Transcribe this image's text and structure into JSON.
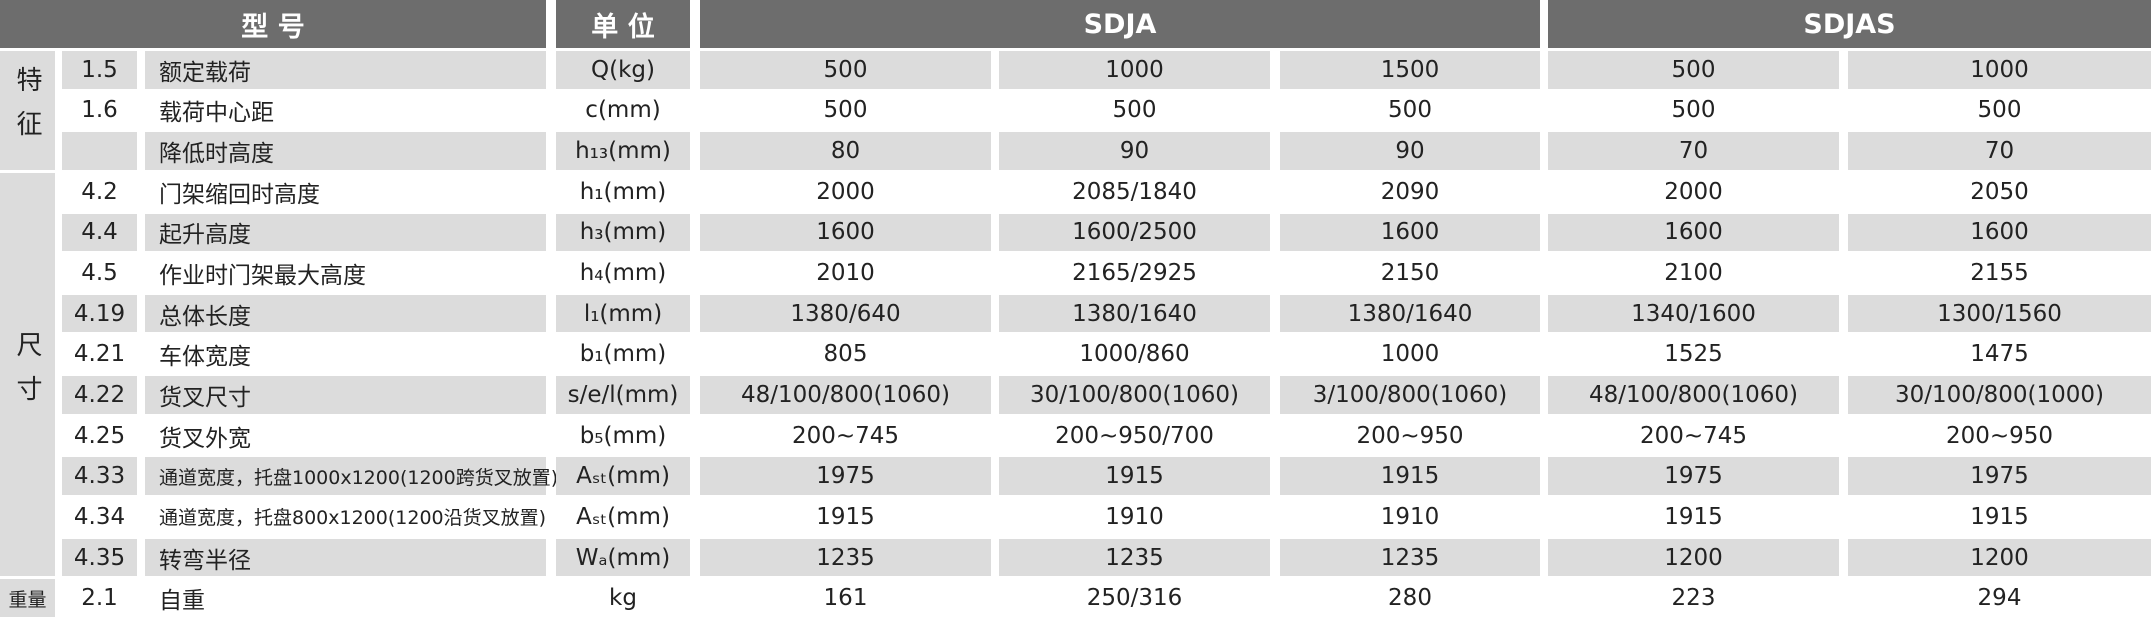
{
  "table": {
    "header": [
      "型 号",
      "单 位",
      "SDJA",
      "SDJAS"
    ],
    "groups": [
      {
        "label": "特征",
        "rows": [
          0,
          2
        ]
      },
      {
        "label": "尺寸",
        "rows": [
          3,
          12
        ]
      },
      {
        "label": "重量",
        "rows": [
          13,
          13
        ]
      }
    ],
    "rows": [
      {
        "code": "1.5",
        "name": "额定载荷",
        "unit": "Q(kg)",
        "values": [
          "500",
          "1000",
          "1500",
          "500",
          "1000"
        ]
      },
      {
        "code": "1.6",
        "name": "载荷中心距",
        "unit": "c(mm)",
        "values": [
          "500",
          "500",
          "500",
          "500",
          "500"
        ]
      },
      {
        "code": null,
        "name": "降低时高度",
        "unit": "h₁₃(mm)",
        "values": [
          "80",
          "90",
          "90",
          "70",
          "70"
        ]
      },
      {
        "code": "4.2",
        "name": "门架缩回时高度",
        "unit": "h₁(mm)",
        "values": [
          "2000",
          "2085/1840",
          "2090",
          "2000",
          "2050"
        ]
      },
      {
        "code": "4.4",
        "name": "起升高度",
        "unit": "h₃(mm)",
        "values": [
          "1600",
          "1600/2500",
          "1600",
          "1600",
          "1600"
        ]
      },
      {
        "code": "4.5",
        "name": "作业时门架最大高度",
        "unit": "h₄(mm)",
        "values": [
          "2010",
          "2165/2925",
          "2150",
          "2100",
          "2155"
        ]
      },
      {
        "code": "4.19",
        "name": "总体长度",
        "unit": "l₁(mm)",
        "values": [
          "1380/640",
          "1380/1640",
          "1380/1640",
          "1340/1600",
          "1300/1560"
        ]
      },
      {
        "code": "4.21",
        "name": "车体宽度",
        "unit": "b₁(mm)",
        "values": [
          "805",
          "1000/860",
          "1000",
          "1525",
          "1475"
        ]
      },
      {
        "code": "4.22",
        "name": "货叉尺寸",
        "unit": "s/e/l(mm)",
        "values": [
          "48/100/800(1060)",
          "30/100/800(1060)",
          "3/100/800(1060)",
          "48/100/800(1060)",
          "30/100/800(1000)"
        ]
      },
      {
        "code": "4.25",
        "name": "货叉外宽",
        "unit": "b₅(mm)",
        "values": [
          "200~745",
          "200~950/700",
          "200~950",
          "200~745",
          "200~950"
        ]
      },
      {
        "code": "4.33",
        "name": "通道宽度，托盘1000x1200(1200跨货叉放置)",
        "unit": "Aₛₜ(mm)",
        "values": [
          "1975",
          "1915",
          "1915",
          "1975",
          "1975"
        ]
      },
      {
        "code": "4.34",
        "name": "通道宽度，托盘800x1200(1200沿货叉放置)",
        "unit": "Aₛₜ(mm)",
        "values": [
          "1915",
          "1910",
          "1910",
          "1915",
          "1915"
        ]
      },
      {
        "code": "4.35",
        "name": "转弯半径",
        "unit": "Wₐ(mm)",
        "values": [
          "1235",
          "1235",
          "1235",
          "1200",
          "1200"
        ]
      },
      {
        "code": "2.1",
        "name": "自重",
        "unit": "kg",
        "values": [
          "161",
          "250/316",
          "280",
          "223",
          "294"
        ]
      }
    ]
  }
}
